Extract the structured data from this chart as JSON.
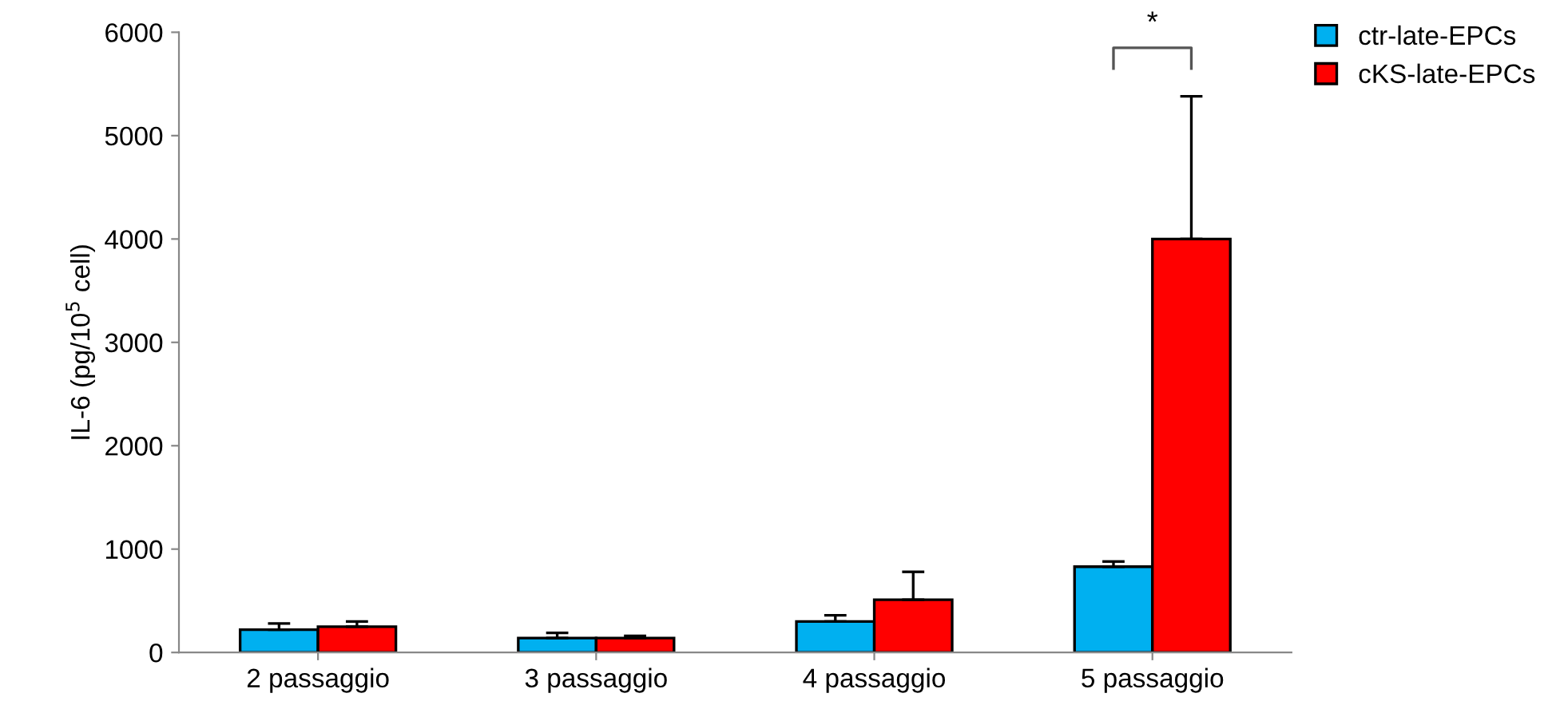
{
  "chart_data": {
    "type": "bar",
    "ylabel": "IL-6 (pg/10$^{5}$ cell)",
    "categories": [
      "2 passaggio",
      "3 passaggio",
      "4 passaggio",
      "5 passaggio"
    ],
    "series": [
      {
        "name": "ctr-late-EPCs",
        "color": "#00b0f0",
        "values": [
          220,
          140,
          300,
          830
        ],
        "errors": [
          [
            220,
            280
          ],
          [
            140,
            190
          ],
          [
            300,
            360
          ],
          [
            830,
            880
          ]
        ]
      },
      {
        "name": "cKS-late-EPCs",
        "color": "#ff0000",
        "values": [
          250,
          140,
          510,
          4000
        ],
        "errors": [
          [
            250,
            300
          ],
          [
            140,
            160
          ],
          [
            510,
            780
          ],
          [
            4000,
            5380
          ]
        ]
      }
    ],
    "ylim": [
      0,
      6000
    ],
    "yticks": [
      0,
      1000,
      2000,
      3000,
      4000,
      5000,
      6000
    ],
    "grid": false,
    "legend": "top right",
    "annotations": [
      "*"
    ]
  }
}
